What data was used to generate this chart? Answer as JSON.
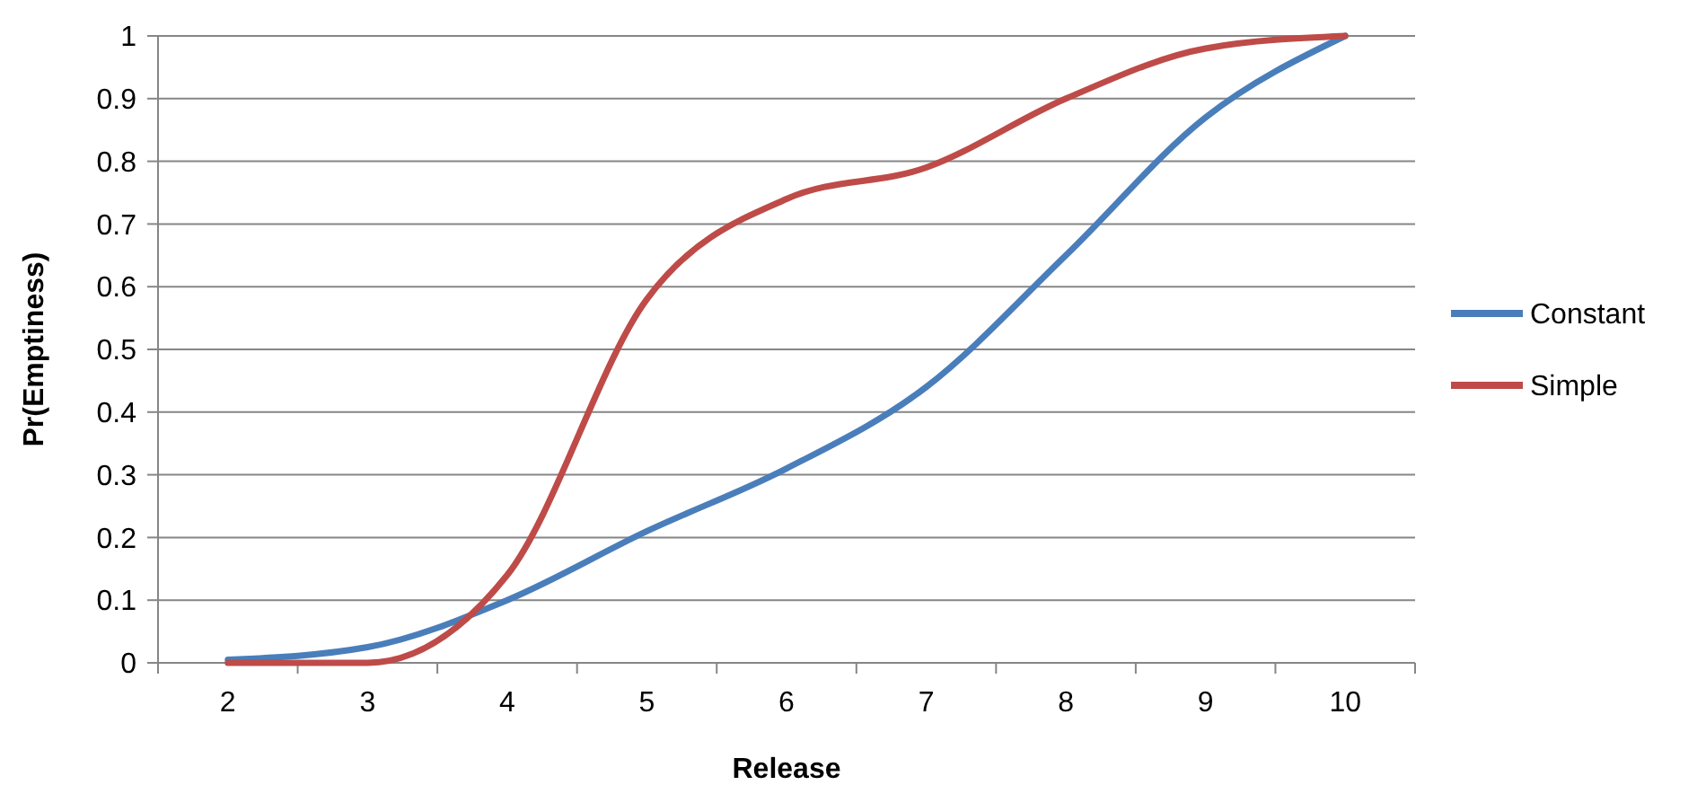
{
  "chart_data": {
    "type": "line",
    "xlabel": "Release",
    "ylabel": "Pr(Emptiness)",
    "categories": [
      "2",
      "3",
      "4",
      "5",
      "6",
      "7",
      "8",
      "9",
      "10"
    ],
    "series": [
      {
        "name": "Constant",
        "color": "#4a7ebb",
        "values": [
          0.005,
          0.025,
          0.1,
          0.21,
          0.31,
          0.44,
          0.65,
          0.87,
          1.0
        ]
      },
      {
        "name": "Simple",
        "color": "#be4b48",
        "values": [
          0,
          0,
          0.14,
          0.58,
          0.74,
          0.79,
          0.9,
          0.98,
          1.0
        ]
      }
    ],
    "ylim": [
      0,
      1
    ],
    "yticks": [
      0,
      0.1,
      0.2,
      0.3,
      0.4,
      0.5,
      0.6,
      0.7,
      0.8,
      0.9,
      1
    ],
    "grid": "y",
    "legend": "right",
    "marker": "none",
    "line_style": "solid"
  }
}
